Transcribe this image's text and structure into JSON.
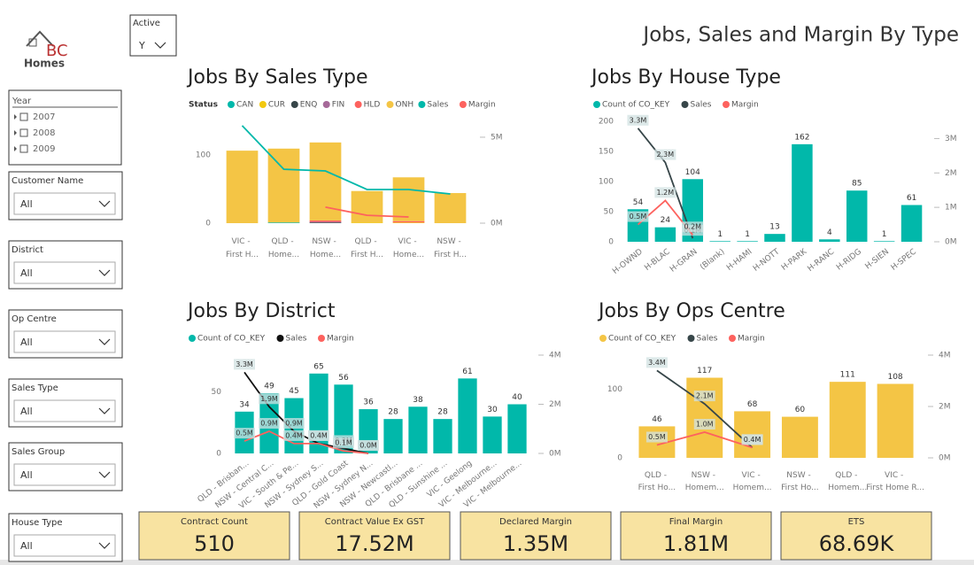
{
  "header": {
    "logo_mark": "BC",
    "logo_name": "Homes",
    "title": "Jobs, Sales and Margin By Type"
  },
  "filters": {
    "active": {
      "label": "Active",
      "value": "Y"
    },
    "year": {
      "label": "Year",
      "items": [
        "2007",
        "2008",
        "2009"
      ]
    },
    "dropdowns": [
      {
        "label": "Customer Name",
        "value": "All"
      },
      {
        "label": "District",
        "value": "All"
      },
      {
        "label": "Op Centre",
        "value": "All"
      },
      {
        "label": "Sales Type",
        "value": "All"
      },
      {
        "label": "Sales Group",
        "value": "All"
      },
      {
        "label": "House Type",
        "value": "All"
      }
    ]
  },
  "kpis": [
    {
      "label": "Contract Count",
      "value": "510"
    },
    {
      "label": "Contract Value Ex GST",
      "value": "17.52M"
    },
    {
      "label": "Declared Margin",
      "value": "1.35M"
    },
    {
      "label": "Final Margin",
      "value": "1.81M"
    },
    {
      "label": "ETS",
      "value": "68.69K"
    }
  ],
  "chart_data": [
    {
      "type": "bar",
      "stacked": true,
      "title": "Jobs By Sales Type",
      "legend_title": "Status",
      "categories": [
        "VIC - First H...",
        "QLD - Home...",
        "NSW - Home...",
        "QLD - First H...",
        "VIC - Home...",
        "NSW - First H..."
      ],
      "series": [
        {
          "name": "CAN",
          "color": "#01B8AA",
          "values": [
            0,
            1,
            0,
            0,
            0,
            0
          ]
        },
        {
          "name": "CUR",
          "color": "#F2C80F",
          "values": [
            0,
            0,
            0,
            1,
            1,
            0
          ]
        },
        {
          "name": "ENQ",
          "color": "#374649",
          "values": [
            0,
            0,
            1,
            0,
            0,
            0
          ]
        },
        {
          "name": "FIN",
          "color": "#A66999",
          "values": [
            0,
            0,
            1,
            0,
            0,
            0
          ]
        },
        {
          "name": "HLD",
          "color": "#FD625E",
          "values": [
            0,
            0,
            2,
            0,
            2,
            0
          ]
        },
        {
          "name": "ONH",
          "color": "#F4C545",
          "values": [
            106,
            108,
            114,
            46,
            64,
            44
          ]
        },
        {
          "name": "Sales",
          "color": "#01B8AA",
          "type": "line",
          "axis": "y2",
          "values": [
            5670000,
            3140000,
            3040000,
            1960000,
            1960000,
            1700000
          ]
        },
        {
          "name": "Margin",
          "color": "#FD625E",
          "type": "line",
          "axis": "y2",
          "values": [
            null,
            null,
            930000,
            460000,
            360000,
            null
          ]
        }
      ],
      "ylim": [
        0,
        145
      ],
      "yticks": [
        0,
        100
      ],
      "y2lim": [
        0,
        5770000
      ],
      "y2ticks": [
        {
          "value": 0,
          "label": "0M"
        },
        {
          "value": 5000000,
          "label": "5M"
        }
      ],
      "grid": false
    },
    {
      "type": "bar",
      "stacked": true,
      "title": "Jobs By House Type",
      "data_labels": true,
      "categories": [
        "H-OWND",
        "H-BLAC",
        "H-GRAN",
        "(Blank)",
        "H-HAMI",
        "H-NOTT",
        "H-PARK",
        "H-RANC",
        "H-RIDG",
        "H-SIEN",
        "H-SPEC"
      ],
      "series": [
        {
          "name": "Count of CO_KEY",
          "color": "#01B8AA",
          "values": [
            54,
            24,
            104,
            1,
            1,
            13,
            162,
            4,
            85,
            1,
            61
          ]
        },
        {
          "name": "Sales",
          "color": "#374649",
          "type": "line",
          "axis": "y2",
          "values": [
            3300000,
            2300000,
            100000,
            null,
            null,
            null,
            null,
            null,
            null,
            null,
            null
          ],
          "value_labels": [
            "3.3M",
            "2.3M",
            "0.1M",
            null,
            null,
            null,
            null,
            null,
            null,
            null,
            null
          ]
        },
        {
          "name": "Margin",
          "color": "#FD625E",
          "type": "line",
          "axis": "y2",
          "values": [
            500000,
            1200000,
            200000,
            null,
            null,
            null,
            null,
            null,
            null,
            null,
            null
          ],
          "value_labels": [
            "0.5M",
            "1.2M",
            "0.2M",
            null,
            null,
            null,
            null,
            null,
            null,
            null,
            null
          ]
        }
      ],
      "ylim": [
        0,
        200
      ],
      "yticks": [
        0,
        50,
        100,
        150,
        200
      ],
      "y2lim": [
        0,
        3500000
      ],
      "y2ticks": [
        {
          "value": 0,
          "label": "0M"
        },
        {
          "value": 1000000,
          "label": "1M"
        },
        {
          "value": 2000000,
          "label": "2M"
        },
        {
          "value": 3000000,
          "label": "3M"
        }
      ],
      "grid": false
    },
    {
      "type": "bar",
      "stacked": true,
      "title": "Jobs By District",
      "data_labels": true,
      "categories": [
        "QLD - Brisban...",
        "NSW - Central C...",
        "VIC - South & Pe...",
        "NSW - Sydney S...",
        "QLD - Gold Coast",
        "NSW - Sydney N...",
        "NSW - Newcastl...",
        "QLD - Brisbane ...",
        "QLD - Sunshine ...",
        "VIC - Geelong",
        "VIC - Melbourne...",
        "VIC - Melbourne..."
      ],
      "series": [
        {
          "name": "Count of CO_KEY",
          "color": "#01B8AA",
          "values": [
            34,
            49,
            45,
            65,
            56,
            36,
            28,
            38,
            28,
            61,
            30,
            40
          ]
        },
        {
          "name": "Sales",
          "color": "#111111",
          "type": "line",
          "axis": "y2",
          "values": [
            3300000,
            1900000,
            900000,
            400000,
            200000,
            0,
            null,
            null,
            null,
            null,
            null,
            null
          ],
          "value_labels": [
            "3.3M",
            "1.9M",
            "0.9M",
            "0.4M",
            "0.2M",
            "0.0M",
            null,
            null,
            null,
            null,
            null,
            null
          ]
        },
        {
          "name": "Margin",
          "color": "#FD625E",
          "type": "line",
          "axis": "y2",
          "values": [
            500000,
            900000,
            400000,
            400000,
            100000,
            0,
            null,
            null,
            null,
            null,
            null,
            null
          ],
          "value_labels": [
            "0.5M",
            "0.9M",
            "0.4M",
            "0.4M",
            "0.1M",
            "0.0M",
            null,
            null,
            null,
            null,
            null,
            null
          ]
        }
      ],
      "ylim": [
        0,
        80
      ],
      "yticks": [
        0,
        50
      ],
      "y2lim": [
        0,
        4000000
      ],
      "y2ticks": [
        {
          "value": 0,
          "label": "0M"
        },
        {
          "value": 2000000,
          "label": "2M"
        },
        {
          "value": 4000000,
          "label": "4M"
        }
      ],
      "grid": false
    },
    {
      "type": "bar",
      "stacked": true,
      "title": "Jobs By Ops Centre",
      "data_labels": true,
      "categories": [
        "QLD - First Ho...",
        "NSW - Homem...",
        "VIC - Homem...",
        "NSW - First Ho...",
        "QLD - Homem...",
        "VIC - First Home R..."
      ],
      "series": [
        {
          "name": "Count of CO_KEY",
          "color": "#F4C545",
          "values": [
            46,
            117,
            68,
            60,
            111,
            108
          ]
        },
        {
          "name": "Sales",
          "color": "#374649",
          "type": "line",
          "axis": "y2",
          "values": [
            3400000,
            2100000,
            400000,
            null,
            null,
            null
          ],
          "value_labels": [
            "3.4M",
            "2.1M",
            "0.4M",
            null,
            null,
            null
          ]
        },
        {
          "name": "Margin",
          "color": "#FD625E",
          "type": "line",
          "axis": "y2",
          "values": [
            500000,
            1000000,
            400000,
            null,
            null,
            null
          ],
          "value_labels": [
            "0.5M",
            "1.0M",
            "0.4M",
            null,
            null,
            null
          ]
        }
      ],
      "ylim": [
        0,
        150
      ],
      "yticks": [
        0,
        100
      ],
      "y2lim": [
        0,
        4000000
      ],
      "y2ticks": [
        {
          "value": 0,
          "label": "0M"
        },
        {
          "value": 2000000,
          "label": "2M"
        },
        {
          "value": 4000000,
          "label": "4M"
        }
      ],
      "grid": false
    }
  ]
}
